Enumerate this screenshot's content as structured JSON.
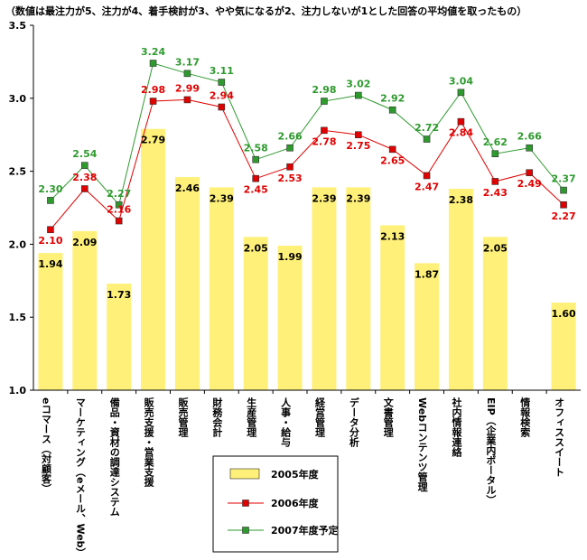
{
  "note": "（数値は最注力が5、注力が4、着手検討が3、やや気になるが2、注力しないが1とした回答の平均値を取ったもの）",
  "chart_data": {
    "type": "bar",
    "ylim": [
      1.0,
      3.5
    ],
    "yticks": [
      "1.0",
      "1.5",
      "2.0",
      "2.5",
      "3.0",
      "3.5"
    ],
    "grid": false,
    "legend_placement": "bottom-center",
    "categories": [
      "eコマース（対顧客）",
      "マーケティング（eメール、Web）",
      "備品・資材の調達システム",
      "販売支援・営業支援",
      "販売管理",
      "財務会計",
      "生産管理",
      "人事・給与",
      "経営管理",
      "データ分析",
      "文書管理",
      "Webコンテンツ管理",
      "社内情報連絡",
      "EIP（企業内ポータル）",
      "情報検索",
      "オフィススイート"
    ],
    "series": [
      {
        "name": "2005年度",
        "kind": "bar",
        "color": "#fff07a",
        "values": [
          1.94,
          2.09,
          1.73,
          2.79,
          2.46,
          2.39,
          2.05,
          1.99,
          2.39,
          2.39,
          2.13,
          1.87,
          2.38,
          2.05,
          null,
          1.6
        ],
        "labels": [
          "1.94",
          "2.09",
          "1.73",
          "2.79",
          "2.46",
          "2.39",
          "2.05",
          "1.99",
          "2.39",
          "2.39",
          "2.13",
          "1.87",
          "2.38",
          "2.05",
          "",
          "1.60"
        ]
      },
      {
        "name": "2006年度",
        "kind": "line",
        "color": "#e00000",
        "values": [
          2.1,
          2.38,
          2.16,
          2.98,
          2.99,
          2.94,
          2.45,
          2.53,
          2.78,
          2.75,
          2.65,
          2.47,
          2.84,
          2.43,
          2.49,
          2.27
        ],
        "labels": [
          "2.10",
          "2.38",
          "2.16",
          "2.98",
          "2.99",
          "2.94",
          "2.45",
          "2.53",
          "2.78",
          "2.75",
          "2.65",
          "2.47",
          "2.84",
          "2.43",
          "2.49",
          "2.27"
        ]
      },
      {
        "name": "2007年度予定",
        "kind": "line",
        "color": "#2e9a2e",
        "values": [
          2.3,
          2.54,
          2.27,
          3.24,
          3.17,
          3.11,
          2.58,
          2.66,
          2.98,
          3.02,
          2.92,
          2.72,
          3.04,
          2.62,
          2.66,
          2.37
        ],
        "labels": [
          "2.30",
          "2.54",
          "2.27",
          "3.24",
          "3.17",
          "3.11",
          "2.58",
          "2.66",
          "2.98",
          "3.02",
          "2.92",
          "2.72",
          "3.04",
          "2.62",
          "2.66",
          "2.37"
        ]
      }
    ]
  }
}
